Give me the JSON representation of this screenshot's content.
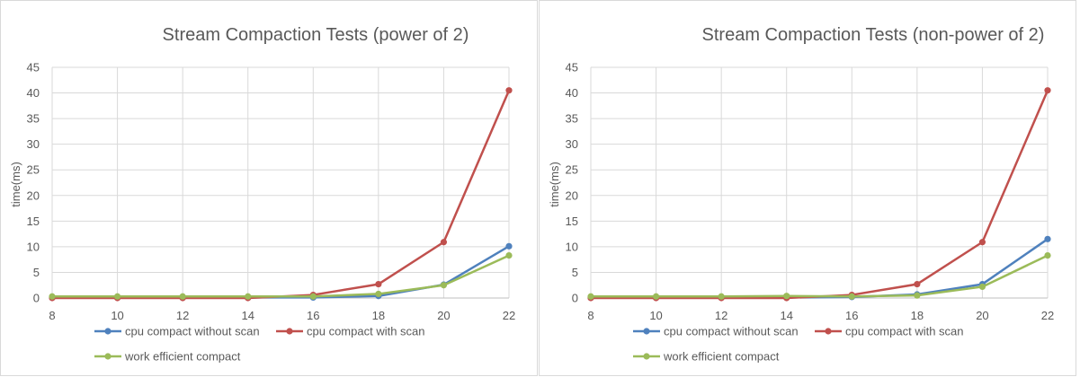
{
  "chart_data": [
    {
      "type": "line",
      "title": "Stream Compaction Tests (power of 2)",
      "xlabel": "",
      "ylabel": "time(ms)",
      "x": [
        8,
        10,
        12,
        14,
        16,
        18,
        20,
        22
      ],
      "xlim": [
        8,
        22
      ],
      "ylim": [
        0,
        45
      ],
      "yticks": [
        0,
        5,
        10,
        15,
        20,
        25,
        30,
        35,
        40,
        45
      ],
      "grid": true,
      "legend": "bottom",
      "series": [
        {
          "name": "cpu compact without scan",
          "color": "#4f81bd",
          "values": [
            0.1,
            0.1,
            0.1,
            0.1,
            0.1,
            0.4,
            2.6,
            10.1
          ]
        },
        {
          "name": "cpu compact with scan",
          "color": "#c0504d",
          "values": [
            0.0,
            0.0,
            0.0,
            0.0,
            0.6,
            2.7,
            10.9,
            40.5
          ]
        },
        {
          "name": "work efficient compact",
          "color": "#9bbb59",
          "values": [
            0.3,
            0.3,
            0.3,
            0.3,
            0.3,
            0.8,
            2.5,
            8.3
          ]
        }
      ]
    },
    {
      "type": "line",
      "title": "Stream Compaction Tests (non-power of 2)",
      "xlabel": "",
      "ylabel": "time(ms)",
      "x": [
        8,
        10,
        12,
        14,
        16,
        18,
        20,
        22
      ],
      "xlim": [
        8,
        22
      ],
      "ylim": [
        0,
        45
      ],
      "yticks": [
        0,
        5,
        10,
        15,
        20,
        25,
        30,
        35,
        40,
        45
      ],
      "grid": true,
      "legend": "bottom",
      "series": [
        {
          "name": "cpu compact without scan",
          "color": "#4f81bd",
          "values": [
            0.1,
            0.1,
            0.1,
            0.1,
            0.2,
            0.7,
            2.7,
            11.5
          ]
        },
        {
          "name": "cpu compact with scan",
          "color": "#c0504d",
          "values": [
            0.0,
            0.0,
            0.0,
            0.0,
            0.6,
            2.7,
            10.9,
            40.5
          ]
        },
        {
          "name": "work efficient compact",
          "color": "#9bbb59",
          "values": [
            0.3,
            0.3,
            0.3,
            0.4,
            0.3,
            0.5,
            2.2,
            8.3
          ]
        }
      ]
    }
  ]
}
